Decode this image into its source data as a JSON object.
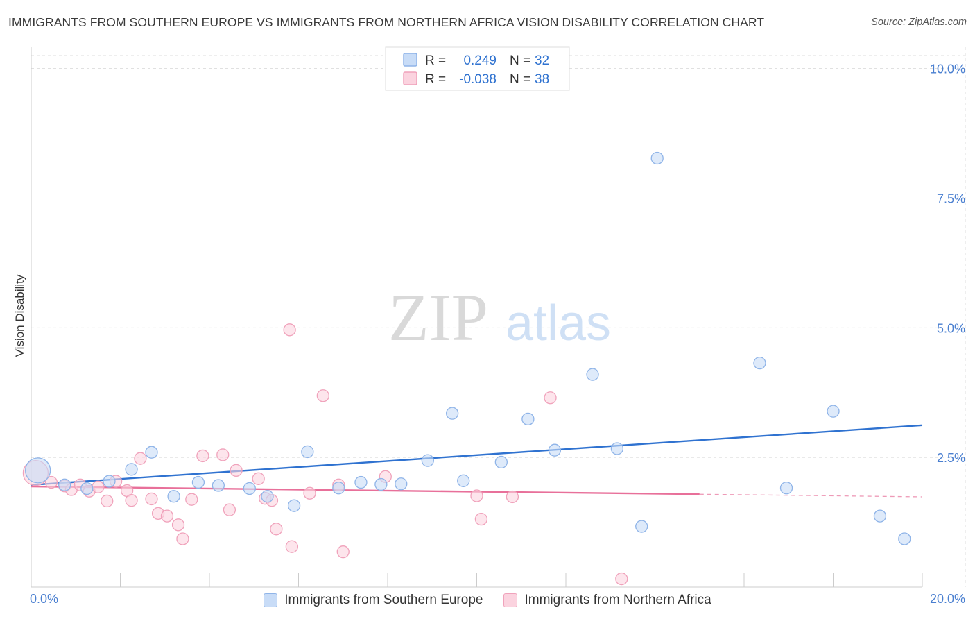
{
  "title": "IMMIGRANTS FROM SOUTHERN EUROPE VS IMMIGRANTS FROM NORTHERN AFRICA VISION DISABILITY CORRELATION CHART",
  "source": "Source: ZipAtlas.com",
  "watermark": {
    "zip": "ZIP",
    "atlas": "atlas"
  },
  "colors": {
    "blue_fill": "#c8dcf7",
    "blue_stroke": "#8fb4e8",
    "blue_line": "#2f72d0",
    "pink_fill": "#fbd3df",
    "pink_stroke": "#f0a2bb",
    "pink_line": "#e8709a",
    "tick_label": "#4a7fd0",
    "grid": "#dcdcdc"
  },
  "stats": [
    {
      "r_label": "R =",
      "r_value": "0.249",
      "n_label": "N =",
      "n_value": "32"
    },
    {
      "r_label": "R =",
      "r_value": "-0.038",
      "n_label": "N =",
      "n_value": "38"
    }
  ],
  "chart_data": {
    "type": "scatter",
    "title": "IMMIGRANTS FROM SOUTHERN EUROPE VS IMMIGRANTS FROM NORTHERN AFRICA VISION DISABILITY CORRELATION CHART",
    "xlabel": "",
    "ylabel": "Vision Disability",
    "xlim": [
      0,
      20
    ],
    "ylim": [
      0,
      10.25
    ],
    "x_tick_labels": [
      {
        "value": 0,
        "label": "0.0%"
      },
      {
        "value": 20,
        "label": "20.0%"
      }
    ],
    "y_ticks": [
      {
        "value": 2.5,
        "label": "2.5%"
      },
      {
        "value": 5.0,
        "label": "5.0%"
      },
      {
        "value": 7.5,
        "label": "7.5%"
      },
      {
        "value": 10.0,
        "label": "10.0%"
      }
    ],
    "x_minor_ticks": [
      2,
      4,
      6,
      8,
      10,
      12,
      14,
      16,
      18,
      20
    ],
    "legend_position": "top-center",
    "series": [
      {
        "name": "Immigrants from Southern Europe",
        "color": "blue",
        "points": [
          {
            "x": 0.15,
            "y": 2.25,
            "big": true
          },
          {
            "x": 0.75,
            "y": 1.97
          },
          {
            "x": 1.25,
            "y": 1.9
          },
          {
            "x": 1.75,
            "y": 2.04
          },
          {
            "x": 2.25,
            "y": 2.27
          },
          {
            "x": 2.7,
            "y": 2.6
          },
          {
            "x": 3.2,
            "y": 1.75
          },
          {
            "x": 3.75,
            "y": 2.02
          },
          {
            "x": 4.2,
            "y": 1.96
          },
          {
            "x": 4.9,
            "y": 1.9
          },
          {
            "x": 5.3,
            "y": 1.75
          },
          {
            "x": 5.9,
            "y": 1.57
          },
          {
            "x": 6.2,
            "y": 2.61
          },
          {
            "x": 6.9,
            "y": 1.91
          },
          {
            "x": 7.4,
            "y": 2.02
          },
          {
            "x": 7.85,
            "y": 1.98
          },
          {
            "x": 8.3,
            "y": 1.99
          },
          {
            "x": 8.9,
            "y": 2.44
          },
          {
            "x": 9.45,
            "y": 3.35
          },
          {
            "x": 9.7,
            "y": 2.05
          },
          {
            "x": 10.55,
            "y": 2.41
          },
          {
            "x": 11.15,
            "y": 3.24
          },
          {
            "x": 11.75,
            "y": 2.64
          },
          {
            "x": 12.6,
            "y": 4.1
          },
          {
            "x": 13.15,
            "y": 2.67
          },
          {
            "x": 13.7,
            "y": 1.17
          },
          {
            "x": 14.05,
            "y": 8.27
          },
          {
            "x": 16.35,
            "y": 4.32
          },
          {
            "x": 16.95,
            "y": 1.91
          },
          {
            "x": 18.0,
            "y": 3.39
          },
          {
            "x": 19.05,
            "y": 1.37
          },
          {
            "x": 19.6,
            "y": 0.93
          }
        ],
        "trend": {
          "x0": 0,
          "y0": 1.97,
          "x1": 20,
          "y1": 3.12
        }
      },
      {
        "name": "Immigrants from Northern Africa",
        "color": "pink",
        "points": [
          {
            "x": 0.1,
            "y": 2.2,
            "big": true
          },
          {
            "x": 0.45,
            "y": 2.02
          },
          {
            "x": 0.75,
            "y": 1.95
          },
          {
            "x": 0.9,
            "y": 1.88
          },
          {
            "x": 1.1,
            "y": 1.97
          },
          {
            "x": 1.3,
            "y": 1.85
          },
          {
            "x": 1.5,
            "y": 1.93
          },
          {
            "x": 1.7,
            "y": 1.66
          },
          {
            "x": 1.9,
            "y": 2.04
          },
          {
            "x": 2.15,
            "y": 1.86
          },
          {
            "x": 2.25,
            "y": 1.67
          },
          {
            "x": 2.45,
            "y": 2.48
          },
          {
            "x": 2.7,
            "y": 1.7
          },
          {
            "x": 2.85,
            "y": 1.42
          },
          {
            "x": 3.05,
            "y": 1.37
          },
          {
            "x": 3.3,
            "y": 1.2
          },
          {
            "x": 3.4,
            "y": 0.93
          },
          {
            "x": 3.6,
            "y": 1.69
          },
          {
            "x": 3.85,
            "y": 2.53
          },
          {
            "x": 4.3,
            "y": 2.55
          },
          {
            "x": 4.45,
            "y": 1.49
          },
          {
            "x": 4.6,
            "y": 2.25
          },
          {
            "x": 5.1,
            "y": 2.09
          },
          {
            "x": 5.25,
            "y": 1.71
          },
          {
            "x": 5.4,
            "y": 1.67
          },
          {
            "x": 5.5,
            "y": 1.12
          },
          {
            "x": 5.8,
            "y": 4.96
          },
          {
            "x": 5.85,
            "y": 0.78
          },
          {
            "x": 6.25,
            "y": 1.81
          },
          {
            "x": 6.55,
            "y": 3.69
          },
          {
            "x": 6.9,
            "y": 1.97
          },
          {
            "x": 7.0,
            "y": 0.68
          },
          {
            "x": 7.95,
            "y": 2.13
          },
          {
            "x": 10.0,
            "y": 1.76
          },
          {
            "x": 10.1,
            "y": 1.31
          },
          {
            "x": 11.65,
            "y": 3.65
          },
          {
            "x": 13.25,
            "y": 0.16
          },
          {
            "x": 10.8,
            "y": 1.74
          }
        ],
        "trend": {
          "x0": 0,
          "y0": 1.94,
          "x1": 15,
          "y1": 1.79,
          "dash_to_x": 20,
          "dash_to_y": 1.74
        }
      }
    ]
  }
}
